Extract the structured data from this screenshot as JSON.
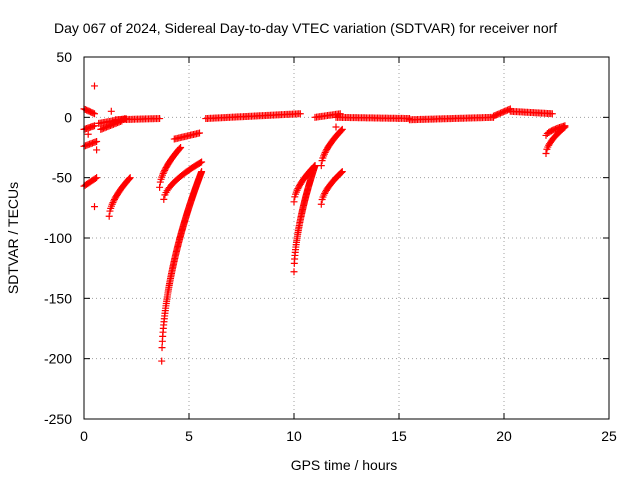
{
  "chart_data": {
    "type": "scatter",
    "title": "Day 067 of 2024, Sidereal Day-to-day VTEC variation (SDTVAR) for receiver norf",
    "xlabel": "GPS time / hours",
    "ylabel": "SDTVAR / TECUs",
    "xlim": [
      0,
      25
    ],
    "ylim": [
      -250,
      50
    ],
    "xticks": [
      0,
      5,
      10,
      15,
      20,
      25
    ],
    "yticks": [
      -250,
      -200,
      -150,
      -100,
      -50,
      0,
      50
    ],
    "grid": true,
    "marker": "+",
    "color": "#ff0000",
    "segments": [
      {
        "x0": 0.0,
        "x1": 0.5,
        "y0": 7,
        "y1": 3
      },
      {
        "x0": 0.0,
        "x1": 0.5,
        "y0": -10,
        "y1": -7
      },
      {
        "x0": 0.0,
        "x1": 0.6,
        "y0": -24,
        "y1": -20
      },
      {
        "x0": 0.0,
        "x1": 0.6,
        "y0": -57,
        "y1": -50
      },
      {
        "x0": 0.7,
        "x1": 2.0,
        "y0": -5,
        "y1": -1
      },
      {
        "x0": 0.8,
        "x1": 1.8,
        "y0": -10,
        "y1": -3
      },
      {
        "x0": 1.5,
        "x1": 3.6,
        "y0": -2,
        "y1": -1
      },
      {
        "x0": 1.2,
        "x1": 2.2,
        "y0": -82,
        "y1": -50,
        "curve": 0.6
      },
      {
        "x0": 3.6,
        "x1": 4.6,
        "y0": -58,
        "y1": -25,
        "curve": 0.6
      },
      {
        "x0": 3.8,
        "x1": 5.6,
        "y0": -68,
        "y1": -37,
        "curve": 0.6
      },
      {
        "x0": 3.7,
        "x1": 5.6,
        "y0": -202,
        "y1": -45,
        "curve": 0.55
      },
      {
        "x0": 4.3,
        "x1": 5.5,
        "y0": -18,
        "y1": -13
      },
      {
        "x0": 5.8,
        "x1": 10.3,
        "y0": -1,
        "y1": 3
      },
      {
        "x0": 10.0,
        "x1": 11.0,
        "y0": -128,
        "y1": -40,
        "curve": 0.6
      },
      {
        "x0": 10.0,
        "x1": 11.0,
        "y0": -70,
        "y1": -40,
        "curve": 0.6
      },
      {
        "x0": 11.0,
        "x1": 12.2,
        "y0": 0,
        "y1": 3
      },
      {
        "x0": 11.3,
        "x1": 12.3,
        "y0": -72,
        "y1": -45,
        "curve": 0.6
      },
      {
        "x0": 11.3,
        "x1": 12.3,
        "y0": -40,
        "y1": -10,
        "curve": 0.6
      },
      {
        "x0": 12.0,
        "x1": 15.5,
        "y0": 0,
        "y1": -1
      },
      {
        "x0": 15.5,
        "x1": 19.5,
        "y0": -2,
        "y1": 0
      },
      {
        "x0": 19.5,
        "x1": 20.3,
        "y0": 1,
        "y1": 7
      },
      {
        "x0": 20.3,
        "x1": 22.3,
        "y0": 5,
        "y1": 3
      },
      {
        "x0": 22.0,
        "x1": 22.9,
        "y0": -30,
        "y1": -8,
        "curve": 0.6
      },
      {
        "x0": 22.0,
        "x1": 22.9,
        "y0": -15,
        "y1": -7,
        "curve": 0.6
      }
    ],
    "outliers": [
      {
        "x": 0.5,
        "y": 26
      },
      {
        "x": 0.5,
        "y": -74
      },
      {
        "x": 0.6,
        "y": -27
      },
      {
        "x": 0.2,
        "y": -14
      },
      {
        "x": 1.3,
        "y": 5
      },
      {
        "x": 12.0,
        "y": -8
      }
    ]
  }
}
